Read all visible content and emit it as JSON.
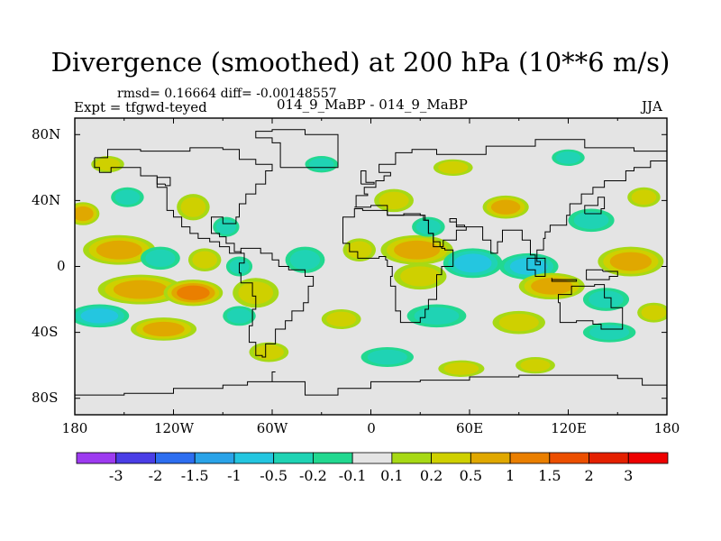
{
  "chart_data": {
    "type": "heatmap",
    "title": "Divergence (smoothed) at 200 hPa (10**6 m/s)",
    "stats": "rmsd= 0.16664 diff= -0.00148557",
    "experiment": "Expt = tfgwd-teyed",
    "case_label": "014_9_MaBP - 014_9_MaBP",
    "season": "JJA",
    "x_ticks": [
      "180",
      "120W",
      "60W",
      "0",
      "60E",
      "120E",
      "180"
    ],
    "x_values": [
      -180,
      -120,
      -60,
      0,
      60,
      120,
      180
    ],
    "y_ticks": [
      "80N",
      "40N",
      "0",
      "40S",
      "80S"
    ],
    "y_values": [
      80,
      40,
      0,
      -40,
      -80
    ],
    "xlim": [
      -180,
      180
    ],
    "ylim": [
      -90,
      90
    ],
    "colorbar_labels": [
      "-3",
      "-2",
      "-1.5",
      "-1",
      "-0.5",
      "-0.2",
      "-0.1",
      "0.1",
      "0.2",
      "0.5",
      "1",
      "1.5",
      "2",
      "3"
    ],
    "colorbar_levels": [
      -3,
      -2,
      -1.5,
      -1,
      -0.5,
      -0.2,
      -0.1,
      0.1,
      0.2,
      0.5,
      1,
      1.5,
      2,
      3
    ],
    "colorbar_colors": [
      "#9d3bf0",
      "#4a3ee6",
      "#2d6ef0",
      "#2aa3e8",
      "#24c6e0",
      "#1fd3b4",
      "#22d890",
      "#e4e4e4",
      "#a7d915",
      "#cfd000",
      "#e0a800",
      "#ea7f00",
      "#ec4f00",
      "#e42000",
      "#ee0000"
    ],
    "blobs": [
      {
        "lon": -153,
        "lat": 10,
        "rlon": 22,
        "rlat": 9,
        "value": 0.6
      },
      {
        "lon": -128,
        "lat": 5,
        "rlon": 12,
        "rlat": 7,
        "value": -0.4
      },
      {
        "lon": -101,
        "lat": 4,
        "rlon": 10,
        "rlat": 7,
        "value": 0.3
      },
      {
        "lon": -80,
        "lat": 0,
        "rlon": 8,
        "rlat": 6,
        "value": -0.3
      },
      {
        "lon": -140,
        "lat": -14,
        "rlon": 26,
        "rlat": 9,
        "value": 0.9
      },
      {
        "lon": -108,
        "lat": -16,
        "rlon": 18,
        "rlat": 8,
        "value": 1.2
      },
      {
        "lon": -70,
        "lat": -16,
        "rlon": 14,
        "rlat": 9,
        "value": 0.4
      },
      {
        "lon": -40,
        "lat": 4,
        "rlon": 12,
        "rlat": 8,
        "value": -0.3
      },
      {
        "lon": -7,
        "lat": 10,
        "rlon": 10,
        "rlat": 7,
        "value": 0.3
      },
      {
        "lon": 28,
        "lat": 10,
        "rlon": 22,
        "rlat": 9,
        "value": 0.8
      },
      {
        "lon": 30,
        "lat": -6,
        "rlon": 16,
        "rlat": 8,
        "value": 0.4
      },
      {
        "lon": 62,
        "lat": 2,
        "rlon": 18,
        "rlat": 9,
        "value": -0.6
      },
      {
        "lon": 96,
        "lat": 0,
        "rlon": 18,
        "rlat": 8,
        "value": -0.7
      },
      {
        "lon": 110,
        "lat": -12,
        "rlon": 20,
        "rlat": 8,
        "value": 0.9
      },
      {
        "lon": 158,
        "lat": 3,
        "rlon": 20,
        "rlat": 9,
        "value": 0.5
      },
      {
        "lon": 143,
        "lat": -20,
        "rlon": 14,
        "rlat": 7,
        "value": -0.3
      },
      {
        "lon": -175,
        "lat": 32,
        "rlon": 10,
        "rlat": 7,
        "value": 0.5
      },
      {
        "lon": -148,
        "lat": 42,
        "rlon": 10,
        "rlat": 6,
        "value": -0.25
      },
      {
        "lon": -108,
        "lat": 36,
        "rlon": 10,
        "rlat": 8,
        "value": 0.3
      },
      {
        "lon": -88,
        "lat": 24,
        "rlon": 8,
        "rlat": 6,
        "value": -0.3
      },
      {
        "lon": 14,
        "lat": 40,
        "rlon": 12,
        "rlat": 7,
        "value": 0.4
      },
      {
        "lon": 35,
        "lat": 24,
        "rlon": 10,
        "rlat": 6,
        "value": -0.3
      },
      {
        "lon": 82,
        "lat": 36,
        "rlon": 14,
        "rlat": 7,
        "value": 0.5
      },
      {
        "lon": 134,
        "lat": 28,
        "rlon": 14,
        "rlat": 7,
        "value": -0.3
      },
      {
        "lon": 166,
        "lat": 42,
        "rlon": 10,
        "rlat": 6,
        "value": 0.4
      },
      {
        "lon": -165,
        "lat": -30,
        "rlon": 18,
        "rlat": 7,
        "value": -0.5
      },
      {
        "lon": -126,
        "lat": -38,
        "rlon": 20,
        "rlat": 7,
        "value": 0.6
      },
      {
        "lon": -80,
        "lat": -30,
        "rlon": 10,
        "rlat": 6,
        "value": -0.3
      },
      {
        "lon": -18,
        "lat": -32,
        "rlon": 12,
        "rlat": 6,
        "value": 0.3
      },
      {
        "lon": 40,
        "lat": -30,
        "rlon": 18,
        "rlat": 7,
        "value": -0.4
      },
      {
        "lon": 90,
        "lat": -34,
        "rlon": 16,
        "rlat": 7,
        "value": 0.4
      },
      {
        "lon": 145,
        "lat": -40,
        "rlon": 16,
        "rlat": 6,
        "value": -0.3
      },
      {
        "lon": 172,
        "lat": -28,
        "rlon": 10,
        "rlat": 6,
        "value": 0.4
      },
      {
        "lon": -62,
        "lat": -52,
        "rlon": 12,
        "rlat": 6,
        "value": 0.25
      },
      {
        "lon": 10,
        "lat": -55,
        "rlon": 16,
        "rlat": 6,
        "value": -0.4
      },
      {
        "lon": 55,
        "lat": -62,
        "rlon": 14,
        "rlat": 5,
        "value": 0.3
      },
      {
        "lon": 100,
        "lat": -60,
        "rlon": 12,
        "rlat": 5,
        "value": 0.25
      },
      {
        "lon": -160,
        "lat": 62,
        "rlon": 10,
        "rlat": 5,
        "value": 0.3
      },
      {
        "lon": -30,
        "lat": 62,
        "rlon": 10,
        "rlat": 5,
        "value": -0.25
      },
      {
        "lon": 50,
        "lat": 60,
        "rlon": 12,
        "rlat": 5,
        "value": 0.3
      },
      {
        "lon": 120,
        "lat": 66,
        "rlon": 10,
        "rlat": 5,
        "value": -0.25
      }
    ],
    "coastlines": [
      [
        [
          -168,
          66
        ],
        [
          -160,
          71
        ],
        [
          -140,
          70
        ],
        [
          -125,
          70
        ],
        [
          -110,
          72
        ],
        [
          -90,
          71
        ],
        [
          -80,
          65
        ],
        [
          -70,
          62
        ],
        [
          -60,
          58
        ],
        [
          -64,
          50
        ],
        [
          -70,
          44
        ],
        [
          -76,
          38
        ],
        [
          -80,
          30
        ],
        [
          -82,
          26
        ],
        [
          -90,
          30
        ],
        [
          -97,
          27
        ],
        [
          -97,
          20
        ],
        [
          -92,
          18
        ],
        [
          -88,
          14
        ],
        [
          -83,
          9
        ],
        [
          -79,
          8
        ],
        [
          -86,
          12
        ],
        [
          -92,
          15
        ],
        [
          -98,
          17
        ],
        [
          -105,
          20
        ],
        [
          -110,
          24
        ],
        [
          -115,
          30
        ],
        [
          -120,
          34
        ],
        [
          -124,
          40
        ],
        [
          -124,
          48
        ],
        [
          -130,
          55
        ],
        [
          -140,
          60
        ],
        [
          -150,
          60
        ],
        [
          -158,
          57
        ],
        [
          -165,
          60
        ],
        [
          -168,
          66
        ]
      ],
      [
        [
          -79,
          8
        ],
        [
          -77,
          2
        ],
        [
          -80,
          -4
        ],
        [
          -79,
          -10
        ],
        [
          -72,
          -18
        ],
        [
          -70,
          -26
        ],
        [
          -72,
          -36
        ],
        [
          -74,
          -46
        ],
        [
          -70,
          -54
        ],
        [
          -66,
          -55
        ],
        [
          -64,
          -47
        ],
        [
          -58,
          -38
        ],
        [
          -52,
          -33
        ],
        [
          -48,
          -27
        ],
        [
          -41,
          -22
        ],
        [
          -38,
          -12
        ],
        [
          -35,
          -6
        ],
        [
          -40,
          -2
        ],
        [
          -50,
          0
        ],
        [
          -56,
          4
        ],
        [
          -60,
          8
        ],
        [
          -67,
          11
        ],
        [
          -73,
          11
        ],
        [
          -79,
          8
        ]
      ],
      [
        [
          -10,
          36
        ],
        [
          -9,
          43
        ],
        [
          -2,
          44
        ],
        [
          -4,
          48
        ],
        [
          3,
          52
        ],
        [
          8,
          55
        ],
        [
          12,
          57
        ],
        [
          5,
          62
        ],
        [
          15,
          69
        ],
        [
          25,
          71
        ],
        [
          40,
          68
        ],
        [
          50,
          68
        ],
        [
          70,
          73
        ],
        [
          100,
          77
        ],
        [
          130,
          72
        ],
        [
          160,
          70
        ],
        [
          180,
          68
        ],
        [
          180,
          64
        ],
        [
          170,
          60
        ],
        [
          160,
          58
        ],
        [
          155,
          52
        ],
        [
          142,
          48
        ],
        [
          135,
          44
        ],
        [
          128,
          38
        ],
        [
          121,
          31
        ],
        [
          119,
          25
        ],
        [
          109,
          21
        ],
        [
          106,
          17
        ],
        [
          105,
          10
        ],
        [
          101,
          3
        ],
        [
          103,
          1
        ],
        [
          100,
          7
        ],
        [
          97,
          16
        ],
        [
          92,
          22
        ],
        [
          88,
          22
        ],
        [
          80,
          15
        ],
        [
          77,
          8
        ],
        [
          73,
          16
        ],
        [
          68,
          24
        ],
        [
          57,
          25
        ],
        [
          52,
          27
        ],
        [
          48,
          29
        ],
        [
          52,
          24
        ],
        [
          58,
          22
        ],
        [
          52,
          16
        ],
        [
          44,
          12
        ],
        [
          42,
          15
        ],
        [
          38,
          20
        ],
        [
          35,
          28
        ],
        [
          33,
          31
        ],
        [
          30,
          32
        ],
        [
          20,
          31
        ],
        [
          10,
          33
        ],
        [
          10,
          37
        ],
        [
          0,
          36
        ],
        [
          -5,
          36
        ],
        [
          -10,
          36
        ]
      ],
      [
        [
          -17,
          21
        ],
        [
          -17,
          14
        ],
        [
          -13,
          9
        ],
        [
          -8,
          5
        ],
        [
          -2,
          5
        ],
        [
          5,
          6
        ],
        [
          9,
          4
        ],
        [
          10,
          0
        ],
        [
          13,
          -6
        ],
        [
          12,
          -12
        ],
        [
          15,
          -27
        ],
        [
          18,
          -34
        ],
        [
          25,
          -34
        ],
        [
          30,
          -31
        ],
        [
          33,
          -26
        ],
        [
          35,
          -20
        ],
        [
          40,
          -15
        ],
        [
          40,
          -5
        ],
        [
          43,
          0
        ],
        [
          50,
          10
        ],
        [
          45,
          11
        ],
        [
          43,
          12
        ],
        [
          38,
          20
        ],
        [
          35,
          28
        ],
        [
          32,
          31
        ],
        [
          20,
          31
        ],
        [
          10,
          34
        ],
        [
          -5,
          35
        ],
        [
          -10,
          30
        ],
        [
          -17,
          21
        ]
      ],
      [
        [
          114,
          -22
        ],
        [
          115,
          -34
        ],
        [
          125,
          -33
        ],
        [
          135,
          -35
        ],
        [
          140,
          -38
        ],
        [
          148,
          -38
        ],
        [
          153,
          -30
        ],
        [
          153,
          -25
        ],
        [
          146,
          -19
        ],
        [
          142,
          -11
        ],
        [
          136,
          -12
        ],
        [
          131,
          -12
        ],
        [
          122,
          -17
        ],
        [
          114,
          -22
        ]
      ],
      [
        [
          -180,
          -78
        ],
        [
          -150,
          -77
        ],
        [
          -120,
          -74
        ],
        [
          -90,
          -72
        ],
        [
          -75,
          -70
        ],
        [
          -60,
          -64
        ],
        [
          -58,
          -64
        ],
        [
          -60,
          -70
        ],
        [
          -40,
          -78
        ],
        [
          -20,
          -74
        ],
        [
          0,
          -70
        ],
        [
          30,
          -69
        ],
        [
          60,
          -67
        ],
        [
          90,
          -66
        ],
        [
          120,
          -66
        ],
        [
          150,
          -68
        ],
        [
          165,
          -72
        ],
        [
          180,
          -78
        ],
        [
          180,
          -90
        ],
        [
          -180,
          -90
        ],
        [
          -180,
          -78
        ]
      ],
      [
        [
          -55,
          60
        ],
        [
          -45,
          60
        ],
        [
          -20,
          70
        ],
        [
          -20,
          80
        ],
        [
          -40,
          83
        ],
        [
          -60,
          82
        ],
        [
          -70,
          78
        ],
        [
          -60,
          75
        ],
        [
          -55,
          68
        ],
        [
          -55,
          60
        ]
      ],
      [
        [
          -125,
          50
        ],
        [
          -130,
          54
        ],
        [
          -122,
          49
        ],
        [
          -125,
          50
        ]
      ],
      [
        [
          -6,
          50
        ],
        [
          2,
          51
        ],
        [
          -3,
          58
        ],
        [
          -6,
          56
        ],
        [
          -6,
          50
        ]
      ],
      [
        [
          95,
          5
        ],
        [
          106,
          -6
        ],
        [
          100,
          -2
        ],
        [
          95,
          5
        ]
      ],
      [
        [
          110,
          -8
        ],
        [
          125,
          -9
        ],
        [
          110,
          -7
        ],
        [
          110,
          -8
        ]
      ],
      [
        [
          130,
          32
        ],
        [
          140,
          35
        ],
        [
          142,
          42
        ],
        [
          138,
          37
        ],
        [
          130,
          32
        ]
      ],
      [
        [
          141,
          -3
        ],
        [
          150,
          -6
        ],
        [
          145,
          -8
        ],
        [
          138,
          -8
        ],
        [
          131,
          -2
        ],
        [
          141,
          -3
        ]
      ]
    ]
  }
}
